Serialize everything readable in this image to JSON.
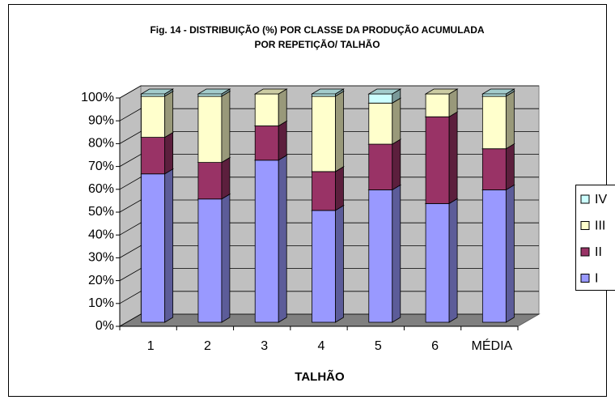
{
  "chart_data": {
    "type": "stacked-bar-3d",
    "title": [
      "Fig. 14 - DISTRIBUIÇÃO (%) POR CLASSE DA PRODUÇÃO ACUMULADA",
      "POR REPETIÇÃO/ TALHÃO"
    ],
    "xlabel": "TALHÃO",
    "categories": [
      "1",
      "2",
      "3",
      "4",
      "5",
      "6",
      "MÉDIA"
    ],
    "series": [
      {
        "name": "I",
        "color": "#9999ff",
        "values": [
          65,
          54,
          71,
          49,
          58,
          52,
          58
        ]
      },
      {
        "name": "II",
        "color": "#993366",
        "values": [
          16,
          16,
          15,
          17,
          20,
          38,
          18
        ]
      },
      {
        "name": "III",
        "color": "#ffffcc",
        "values": [
          18,
          29,
          14,
          33,
          18,
          10,
          23
        ]
      },
      {
        "name": "IV",
        "color": "#ccffff",
        "values": [
          1,
          1,
          0,
          1,
          4,
          0,
          1
        ]
      }
    ],
    "ylim": [
      0,
      100
    ],
    "yticks": [
      {
        "value": 0,
        "label": "0%"
      },
      {
        "value": 10,
        "label": "10%"
      },
      {
        "value": 20,
        "label": "20%"
      },
      {
        "value": 30,
        "label": "30%"
      },
      {
        "value": 40,
        "label": "40%"
      },
      {
        "value": 50,
        "label": "50%"
      },
      {
        "value": 60,
        "label": "60%"
      },
      {
        "value": 70,
        "label": "70%"
      },
      {
        "value": 80,
        "label": "80%"
      },
      {
        "value": 90,
        "label": "90%"
      },
      {
        "value": 100,
        "label": "100%"
      }
    ],
    "grid": true,
    "legend": "right"
  }
}
